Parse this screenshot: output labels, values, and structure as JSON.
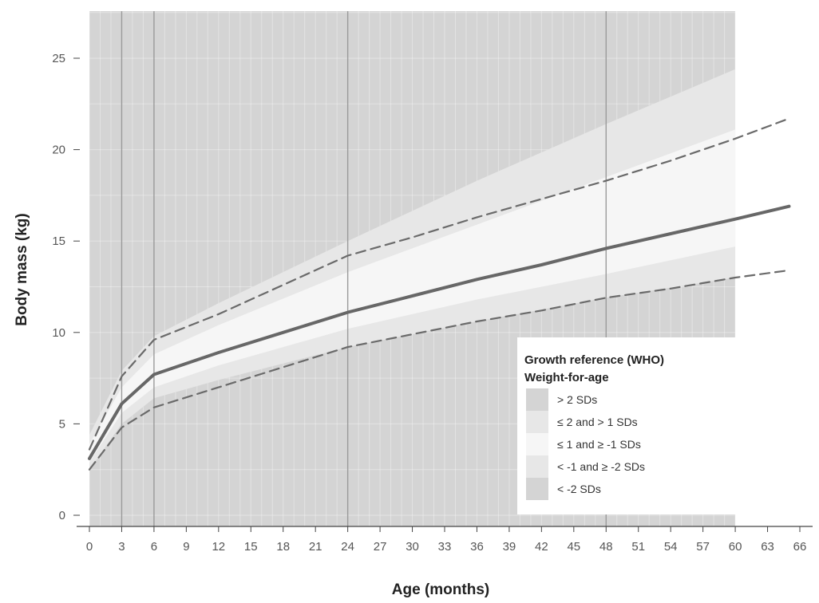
{
  "chart_data": {
    "type": "area",
    "xlabel": "Age (months)",
    "ylabel": "Body mass (kg)",
    "xlim": [
      0,
      66
    ],
    "ylim": [
      0,
      27.5
    ],
    "x_ticks": [
      0,
      3,
      6,
      9,
      12,
      15,
      18,
      21,
      24,
      27,
      30,
      33,
      36,
      39,
      42,
      45,
      48,
      51,
      54,
      57,
      60,
      63,
      66
    ],
    "y_ticks": [
      0,
      5,
      10,
      15,
      20,
      25
    ],
    "x_major_gridlines": [
      3,
      6,
      24,
      48
    ],
    "grid": true,
    "legend": {
      "placement": "bottom-right",
      "title_line1": "Growth reference (WHO)",
      "title_line2": "Weight-for-age",
      "entries": [
        {
          "label": "> 2 SDs",
          "color": "#d4d4d4"
        },
        {
          "label": "≤ 2 and > 1 SDs",
          "color": "#e7e7e7"
        },
        {
          "label": "≤ 1 and ≥ -1 SDs",
          "color": "#f6f6f6"
        },
        {
          "label": "< -1 and ≥ -2 SDs",
          "color": "#e7e7e7"
        },
        {
          "label": "< -2 SDs",
          "color": "#d4d4d4"
        }
      ]
    },
    "reference_bands": {
      "x": [
        0,
        3,
        6,
        12,
        24,
        36,
        48,
        60
      ],
      "plus2sd": [
        4.4,
        7.9,
        9.8,
        11.6,
        15.0,
        18.3,
        21.4,
        24.4
      ],
      "plus1sd": [
        3.9,
        7.0,
        8.8,
        10.4,
        13.3,
        15.9,
        18.5,
        21.1
      ],
      "minus1sd": [
        2.9,
        5.6,
        7.0,
        8.2,
        10.2,
        11.8,
        13.2,
        14.7
      ],
      "minus2sd": [
        2.5,
        5.0,
        6.4,
        7.4,
        9.2,
        10.6,
        11.9,
        13.0
      ]
    },
    "series": [
      {
        "style": "solid",
        "x": [
          0,
          3,
          6,
          12,
          18,
          24,
          30,
          36,
          42,
          48,
          54,
          60,
          65
        ],
        "values": [
          3.1,
          6.1,
          7.7,
          8.9,
          10.0,
          11.1,
          12.0,
          12.9,
          13.7,
          14.6,
          15.4,
          16.2,
          16.9
        ]
      },
      {
        "style": "dashed",
        "x": [
          0,
          3,
          6,
          12,
          18,
          24,
          30,
          36,
          42,
          48,
          54,
          60,
          65
        ],
        "values": [
          3.6,
          7.6,
          9.6,
          11.0,
          12.6,
          14.2,
          15.2,
          16.3,
          17.3,
          18.3,
          19.4,
          20.6,
          21.7
        ]
      },
      {
        "style": "dashed",
        "x": [
          0,
          3,
          6,
          12,
          18,
          24,
          30,
          36,
          42,
          48,
          54,
          60,
          65
        ],
        "values": [
          2.5,
          4.8,
          5.9,
          7.0,
          8.1,
          9.2,
          9.9,
          10.6,
          11.2,
          11.9,
          12.4,
          13.0,
          13.4
        ]
      }
    ],
    "colors": {
      "outer_background": "#d4d4d4",
      "band_1sd_2sd": "#e7e7e7",
      "band_center": "#f6f6f6",
      "solid_line": "#676767",
      "dashed_line": "#6a6a6a"
    }
  }
}
